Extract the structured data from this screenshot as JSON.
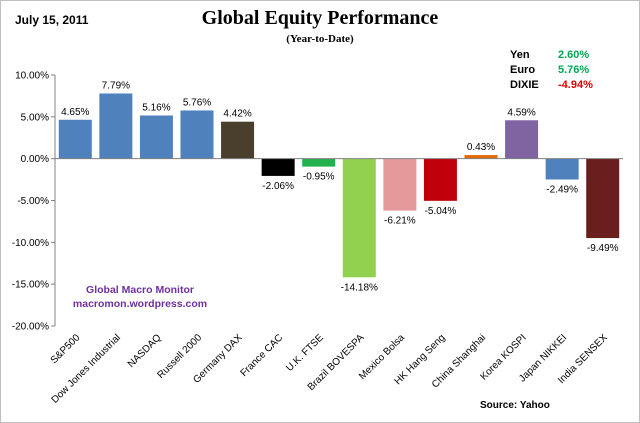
{
  "header": {
    "date": "July 15,  2011",
    "title": "Global Equity Performance",
    "subtitle": "(Year-to-Date)"
  },
  "currencies": [
    {
      "name": "Yen",
      "value": "2.60%",
      "color": "#00a651"
    },
    {
      "name": "Euro",
      "value": "5.76%",
      "color": "#00a651"
    },
    {
      "name": "DIXIE",
      "value": "-4.94%",
      "color": "#e00000"
    }
  ],
  "watermark": {
    "line1": "Global  Macro  Monitor",
    "line2": "macromon.wordpress.com"
  },
  "source": "Source:    Yahoo",
  "chart_data": {
    "type": "bar",
    "title": "Global Equity Performance",
    "subtitle": "(Year-to-Date)",
    "xlabel": "",
    "ylabel": "",
    "ylim": [
      -20,
      10
    ],
    "yticks": [
      10,
      5,
      0,
      -5,
      -10,
      -15,
      -20
    ],
    "ytick_labels": [
      "10.00%",
      "5.00%",
      "0.00%",
      "-5.00%",
      "-10.00%",
      "-15.00%",
      "-20.00%"
    ],
    "grid": false,
    "categories": [
      "S&P500",
      "Dow Jones Industrial",
      "NASDAQ",
      "Russell 2000",
      "Germany DAX",
      "France CAC",
      "U.K. FTSE",
      "Brazil BOVESPA",
      "Mexico Bolsa",
      "HK Hang Seng",
      "China Shanghai",
      "Korea KOSPI",
      "Japan NIKKEI",
      "India SENSEX"
    ],
    "values": [
      4.65,
      7.79,
      5.16,
      5.76,
      4.42,
      -2.06,
      -0.95,
      -14.18,
      -6.21,
      -5.04,
      0.43,
      4.59,
      -2.49,
      -9.49
    ],
    "value_labels": [
      "4.65%",
      "7.79%",
      "5.16%",
      "5.76%",
      "4.42%",
      "-2.06%",
      "-0.95%",
      "-14.18%",
      "-6.21%",
      "-5.04%",
      "0.43%",
      "4.59%",
      "-2.49%",
      "-9.49%"
    ],
    "colors": [
      "#4f81bd",
      "#4f81bd",
      "#4f81bd",
      "#4f81bd",
      "#4a3f2c",
      "#000000",
      "#22b14c",
      "#92d050",
      "#e6999b",
      "#c0000b",
      "#e36c09",
      "#8064a2",
      "#4f81bd",
      "#6b1e1e"
    ]
  }
}
